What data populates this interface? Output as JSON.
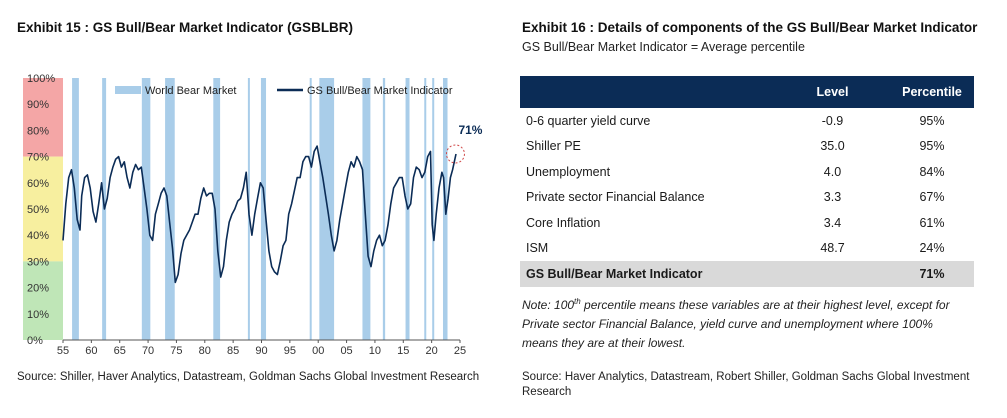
{
  "exhibit15": {
    "title": "Exhibit 15 : GS Bull/Bear Market Indicator (GSBLBR)",
    "source": "Source: Shiller, Haver Analytics, Datastream, Goldman Sachs Global Investment Research"
  },
  "exhibit16": {
    "title": "Exhibit 16 : Details of components of the GS Bull/Bear Market Indicator",
    "subtitle": "GS Bull/Bear Market Indicator = Average percentile",
    "columns": [
      "",
      "Level",
      "Percentile"
    ],
    "rows": [
      {
        "name": "0-6 quarter yield curve",
        "level": "-0.9",
        "percentile": "95%"
      },
      {
        "name": "Shiller PE",
        "level": "35.0",
        "percentile": "95%"
      },
      {
        "name": "Unemployment",
        "level": "4.0",
        "percentile": "84%"
      },
      {
        "name": "Private sector Financial Balance",
        "level": "3.3",
        "percentile": "67%"
      },
      {
        "name": "Core Inflation",
        "level": "3.4",
        "percentile": "61%"
      },
      {
        "name": "ISM",
        "level": "48.7",
        "percentile": "24%"
      }
    ],
    "total": {
      "name": "GS Bull/Bear Market Indicator",
      "level": "",
      "percentile": "71%"
    },
    "note_prefix": "Note: 100",
    "note_sup": "th",
    "note_rest": " percentile means these variables are at their highest level, except for Private sector Financial Balance, yield curve and unemployment where 100% means they are at their lowest.",
    "source": "Source: Haver Analytics, Datastream, Robert Shiller, Goldman Sachs Global Investment Research"
  },
  "chart_data": {
    "type": "line",
    "title": "",
    "xlabel": "",
    "ylabel": "",
    "xlim": [
      1955,
      2025
    ],
    "ylim": [
      0,
      100
    ],
    "x_ticks": [
      55,
      60,
      65,
      70,
      75,
      80,
      85,
      90,
      95,
      "00",
      "05",
      10,
      15,
      20,
      25
    ],
    "y_ticks": [
      "0%",
      "10%",
      "20%",
      "30%",
      "40%",
      "50%",
      "60%",
      "70%",
      "80%",
      "90%",
      "100%"
    ],
    "zones": [
      {
        "from": 70,
        "to": 100,
        "color": "#f4a6a6"
      },
      {
        "from": 30,
        "to": 70,
        "color": "#f7ef9f"
      },
      {
        "from": 0,
        "to": 30,
        "color": "#bfe6b7"
      }
    ],
    "legend": [
      "World Bear Market",
      "GS Bull/Bear Market Indicator"
    ],
    "legend_position": "top",
    "annotation": {
      "text": "71%",
      "x": 2024.2,
      "y": 71
    },
    "bear_markets": [
      [
        1956.6,
        1957.8
      ],
      [
        1961.9,
        1962.6
      ],
      [
        1968.9,
        1970.4
      ],
      [
        1973.0,
        1974.7
      ],
      [
        1981.5,
        1982.7
      ],
      [
        1987.6,
        1987.9
      ],
      [
        1989.9,
        1990.8
      ],
      [
        1998.5,
        1998.8
      ],
      [
        2000.2,
        2002.8
      ],
      [
        2007.8,
        2009.2
      ],
      [
        2011.4,
        2011.8
      ],
      [
        2015.4,
        2016.1
      ],
      [
        2018.7,
        2019.0
      ],
      [
        2020.1,
        2020.3
      ],
      [
        2022.0,
        2022.8
      ]
    ],
    "series": [
      {
        "name": "GS Bull/Bear Market Indicator",
        "color": "#0b2c56",
        "x": [
          1955.0,
          1955.5,
          1956.0,
          1956.5,
          1957.0,
          1957.5,
          1958.0,
          1958.3,
          1958.8,
          1959.3,
          1959.8,
          1960.3,
          1960.8,
          1961.3,
          1961.8,
          1962.3,
          1962.8,
          1963.3,
          1963.8,
          1964.3,
          1964.8,
          1965.3,
          1965.8,
          1966.3,
          1966.8,
          1967.3,
          1967.8,
          1968.3,
          1968.8,
          1969.3,
          1969.8,
          1970.3,
          1970.8,
          1971.3,
          1971.8,
          1972.3,
          1972.8,
          1973.3,
          1973.8,
          1974.3,
          1974.8,
          1975.3,
          1975.8,
          1976.3,
          1976.8,
          1977.3,
          1977.8,
          1978.3,
          1978.8,
          1979.3,
          1979.8,
          1980.3,
          1980.8,
          1981.3,
          1981.8,
          1982.3,
          1982.8,
          1983.3,
          1983.8,
          1984.3,
          1984.8,
          1985.3,
          1985.8,
          1986.3,
          1986.8,
          1987.3,
          1987.8,
          1988.3,
          1988.8,
          1989.3,
          1989.8,
          1990.3,
          1990.8,
          1991.3,
          1991.8,
          1992.3,
          1992.8,
          1993.3,
          1993.8,
          1994.3,
          1994.8,
          1995.3,
          1995.8,
          1996.3,
          1996.8,
          1997.3,
          1997.8,
          1998.3,
          1998.8,
          1999.3,
          1999.8,
          2000.3,
          2000.8,
          2001.3,
          2001.8,
          2002.3,
          2002.8,
          2003.3,
          2003.8,
          2004.3,
          2004.8,
          2005.3,
          2005.8,
          2006.3,
          2006.8,
          2007.3,
          2007.8,
          2008.3,
          2008.8,
          2009.3,
          2009.8,
          2010.3,
          2010.8,
          2011.3,
          2011.8,
          2012.3,
          2012.8,
          2013.3,
          2013.8,
          2014.3,
          2014.8,
          2015.3,
          2015.8,
          2016.3,
          2016.8,
          2017.3,
          2017.8,
          2018.3,
          2018.8,
          2019.3,
          2019.8,
          2020.1,
          2020.4,
          2020.8,
          2021.3,
          2021.8,
          2022.1,
          2022.5,
          2022.9,
          2023.3,
          2023.7,
          2024.0,
          2024.3
        ],
        "y": [
          38,
          52,
          62,
          65,
          58,
          46,
          42,
          55,
          62,
          63,
          58,
          49,
          45,
          52,
          60,
          50,
          54,
          62,
          66,
          69,
          70,
          66,
          68,
          62,
          58,
          64,
          67,
          65,
          66,
          58,
          50,
          40,
          38,
          48,
          52,
          56,
          58,
          55,
          45,
          35,
          22,
          25,
          33,
          38,
          40,
          42,
          45,
          48,
          48,
          54,
          58,
          55,
          56,
          56,
          50,
          34,
          24,
          28,
          38,
          45,
          48,
          50,
          53,
          54,
          58,
          64,
          48,
          40,
          48,
          54,
          60,
          58,
          46,
          34,
          28,
          26,
          25,
          30,
          36,
          38,
          48,
          52,
          57,
          62,
          62,
          68,
          70,
          70,
          66,
          72,
          74,
          68,
          62,
          55,
          48,
          40,
          34,
          38,
          46,
          52,
          58,
          64,
          68,
          66,
          70,
          68,
          65,
          48,
          32,
          28,
          34,
          38,
          40,
          36,
          38,
          44,
          52,
          58,
          60,
          62,
          62,
          55,
          50,
          52,
          62,
          66,
          65,
          62,
          64,
          70,
          72,
          44,
          38,
          48,
          58,
          64,
          62,
          48,
          54,
          62,
          65,
          68,
          71
        ]
      }
    ]
  }
}
